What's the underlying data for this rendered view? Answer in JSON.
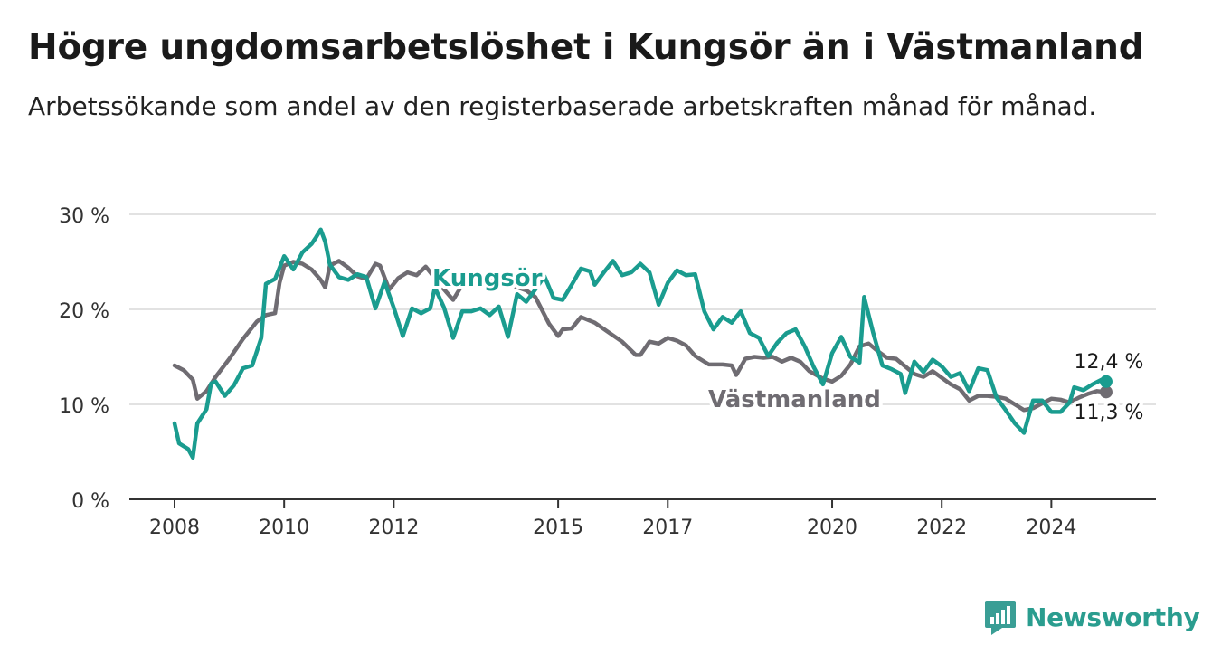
{
  "header": {
    "title": "Högre ungdomsarbetslöshet i Kungsör än i Västmanland",
    "subtitle": "Arbetssökande som andel av den registerbaserade arbetskraften månad för månad."
  },
  "brand": {
    "name": "Newsworthy",
    "icon": "newsworthy-logo-icon",
    "color": "#3a9e95"
  },
  "chart_data": {
    "type": "line",
    "ylim": [
      0,
      30
    ],
    "y_ticks": [
      0,
      10,
      20,
      30
    ],
    "y_tick_labels": [
      "0 %",
      "10 %",
      "20 %",
      "30 %"
    ],
    "x_range": [
      "2008-01",
      "2025-02"
    ],
    "x_ticks": [
      "2008-01",
      "2010-01",
      "2012-01",
      "2015-01",
      "2017-01",
      "2020-01",
      "2022-01",
      "2024-01"
    ],
    "x_tick_labels": [
      "2008",
      "2010",
      "2012",
      "2015",
      "2017",
      "2020",
      "2022",
      "2024"
    ],
    "grid": true,
    "series": [
      {
        "name": "Västmanland",
        "color": "#6f6c72",
        "end_label": "11,3 %",
        "points": [
          [
            "2008-01",
            14.1
          ],
          [
            "2008-03",
            13.6
          ],
          [
            "2008-05",
            12.6
          ],
          [
            "2008-06",
            10.6
          ],
          [
            "2008-08",
            11.4
          ],
          [
            "2008-10",
            12.9
          ],
          [
            "2009-01",
            14.8
          ],
          [
            "2009-04",
            16.9
          ],
          [
            "2009-07",
            18.7
          ],
          [
            "2009-09",
            19.4
          ],
          [
            "2009-11",
            19.6
          ],
          [
            "2009-12",
            22.8
          ],
          [
            "2010-01",
            24.6
          ],
          [
            "2010-03",
            25.0
          ],
          [
            "2010-05",
            24.8
          ],
          [
            "2010-07",
            24.2
          ],
          [
            "2010-09",
            23.1
          ],
          [
            "2010-10",
            22.3
          ],
          [
            "2010-11",
            24.6
          ],
          [
            "2011-01",
            25.1
          ],
          [
            "2011-03",
            24.4
          ],
          [
            "2011-05",
            23.5
          ],
          [
            "2011-07",
            23.2
          ],
          [
            "2011-09",
            24.8
          ],
          [
            "2011-10",
            24.6
          ],
          [
            "2011-12",
            22.1
          ],
          [
            "2012-02",
            23.3
          ],
          [
            "2012-04",
            23.9
          ],
          [
            "2012-06",
            23.6
          ],
          [
            "2012-08",
            24.5
          ],
          [
            "2012-10",
            23.3
          ],
          [
            "2012-12",
            22.1
          ],
          [
            "2013-02",
            21.0
          ],
          [
            "2013-04",
            22.6
          ],
          [
            "2013-06",
            23.2
          ],
          [
            "2013-07",
            23.9
          ],
          [
            "2014-06",
            22.0
          ],
          [
            "2014-08",
            21.3
          ],
          [
            "2014-11",
            18.5
          ],
          [
            "2015-01",
            17.2
          ],
          [
            "2015-02",
            17.9
          ],
          [
            "2015-04",
            18.0
          ],
          [
            "2015-06",
            19.2
          ],
          [
            "2015-09",
            18.6
          ],
          [
            "2015-12",
            17.6
          ],
          [
            "2016-03",
            16.6
          ],
          [
            "2016-06",
            15.2
          ],
          [
            "2016-07",
            15.2
          ],
          [
            "2016-09",
            16.6
          ],
          [
            "2016-11",
            16.4
          ],
          [
            "2017-01",
            17.0
          ],
          [
            "2017-03",
            16.7
          ],
          [
            "2017-05",
            16.2
          ],
          [
            "2017-07",
            15.1
          ],
          [
            "2017-10",
            14.2
          ],
          [
            "2018-01",
            14.2
          ],
          [
            "2018-03",
            14.1
          ],
          [
            "2018-04",
            13.1
          ],
          [
            "2018-06",
            14.8
          ],
          [
            "2018-08",
            15.0
          ],
          [
            "2018-10",
            14.9
          ],
          [
            "2018-12",
            15.0
          ],
          [
            "2019-02",
            14.5
          ],
          [
            "2019-04",
            14.9
          ],
          [
            "2019-06",
            14.5
          ],
          [
            "2019-08",
            13.5
          ],
          [
            "2019-11",
            12.7
          ],
          [
            "2020-01",
            12.4
          ],
          [
            "2020-03",
            13.0
          ],
          [
            "2020-05",
            14.2
          ],
          [
            "2020-07",
            16.1
          ],
          [
            "2020-09",
            16.4
          ],
          [
            "2020-11",
            15.6
          ],
          [
            "2021-01",
            14.9
          ],
          [
            "2021-03",
            14.8
          ],
          [
            "2021-05",
            14.0
          ],
          [
            "2021-07",
            13.2
          ],
          [
            "2021-09",
            12.9
          ],
          [
            "2021-11",
            13.5
          ],
          [
            "2022-01",
            12.8
          ],
          [
            "2022-03",
            12.1
          ],
          [
            "2022-05",
            11.6
          ],
          [
            "2022-07",
            10.4
          ],
          [
            "2022-09",
            10.9
          ],
          [
            "2022-11",
            10.9
          ],
          [
            "2023-01",
            10.8
          ],
          [
            "2023-03",
            10.6
          ],
          [
            "2023-05",
            10.0
          ],
          [
            "2023-07",
            9.4
          ],
          [
            "2023-09",
            9.6
          ],
          [
            "2023-11",
            10.1
          ],
          [
            "2024-01",
            10.6
          ],
          [
            "2024-03",
            10.5
          ],
          [
            "2024-05",
            10.2
          ],
          [
            "2024-07",
            10.7
          ],
          [
            "2024-09",
            11.1
          ],
          [
            "2024-11",
            11.4
          ],
          [
            "2025-01",
            11.3
          ]
        ]
      },
      {
        "name": "Kungsör",
        "color": "#1a9c8f",
        "end_label": "12,4 %",
        "points": [
          [
            "2008-01",
            8.0
          ],
          [
            "2008-02",
            5.9
          ],
          [
            "2008-04",
            5.3
          ],
          [
            "2008-05",
            4.4
          ],
          [
            "2008-06",
            8.0
          ],
          [
            "2008-08",
            9.5
          ],
          [
            "2008-09",
            12.2
          ],
          [
            "2008-10",
            12.4
          ],
          [
            "2008-12",
            10.9
          ],
          [
            "2009-02",
            12.0
          ],
          [
            "2009-04",
            13.8
          ],
          [
            "2009-06",
            14.1
          ],
          [
            "2009-08",
            17.0
          ],
          [
            "2009-09",
            22.7
          ],
          [
            "2009-11",
            23.2
          ],
          [
            "2010-01",
            25.6
          ],
          [
            "2010-03",
            24.2
          ],
          [
            "2010-05",
            26.0
          ],
          [
            "2010-07",
            26.9
          ],
          [
            "2010-08",
            27.6
          ],
          [
            "2010-09",
            28.4
          ],
          [
            "2010-10",
            27.1
          ],
          [
            "2010-11",
            24.7
          ],
          [
            "2011-01",
            23.4
          ],
          [
            "2011-03",
            23.1
          ],
          [
            "2011-05",
            23.7
          ],
          [
            "2011-07",
            23.4
          ],
          [
            "2011-09",
            20.1
          ],
          [
            "2011-11",
            22.9
          ],
          [
            "2012-01",
            20.2
          ],
          [
            "2012-03",
            17.2
          ],
          [
            "2012-05",
            20.1
          ],
          [
            "2012-07",
            19.6
          ],
          [
            "2012-09",
            20.1
          ],
          [
            "2012-10",
            22.3
          ],
          [
            "2012-12",
            20.2
          ],
          [
            "2013-02",
            17.0
          ],
          [
            "2013-04",
            19.8
          ],
          [
            "2013-06",
            19.8
          ],
          [
            "2013-08",
            20.1
          ],
          [
            "2013-10",
            19.4
          ],
          [
            "2013-12",
            20.3
          ],
          [
            "2014-02",
            17.1
          ],
          [
            "2014-04",
            21.6
          ],
          [
            "2014-06",
            20.8
          ],
          [
            "2014-08",
            22.1
          ],
          [
            "2014-10",
            23.5
          ],
          [
            "2014-12",
            21.2
          ],
          [
            "2015-02",
            21.0
          ],
          [
            "2015-04",
            22.6
          ],
          [
            "2015-06",
            24.3
          ],
          [
            "2015-08",
            24.0
          ],
          [
            "2015-09",
            22.6
          ],
          [
            "2015-11",
            23.9
          ],
          [
            "2016-01",
            25.1
          ],
          [
            "2016-03",
            23.6
          ],
          [
            "2016-05",
            23.9
          ],
          [
            "2016-07",
            24.8
          ],
          [
            "2016-09",
            23.9
          ],
          [
            "2016-11",
            20.5
          ],
          [
            "2017-01",
            22.8
          ],
          [
            "2017-03",
            24.1
          ],
          [
            "2017-05",
            23.6
          ],
          [
            "2017-07",
            23.7
          ],
          [
            "2017-09",
            19.8
          ],
          [
            "2017-11",
            17.9
          ],
          [
            "2018-01",
            19.2
          ],
          [
            "2018-03",
            18.6
          ],
          [
            "2018-05",
            19.8
          ],
          [
            "2018-07",
            17.5
          ],
          [
            "2018-09",
            17.0
          ],
          [
            "2018-11",
            15.1
          ],
          [
            "2019-01",
            16.5
          ],
          [
            "2019-03",
            17.5
          ],
          [
            "2019-05",
            17.9
          ],
          [
            "2019-07",
            16.1
          ],
          [
            "2019-09",
            13.9
          ],
          [
            "2019-11",
            12.1
          ],
          [
            "2020-01",
            15.4
          ],
          [
            "2020-03",
            17.1
          ],
          [
            "2020-05",
            15.0
          ],
          [
            "2020-07",
            14.4
          ],
          [
            "2020-08",
            21.3
          ],
          [
            "2020-10",
            17.5
          ],
          [
            "2020-12",
            14.1
          ],
          [
            "2021-02",
            13.7
          ],
          [
            "2021-04",
            13.2
          ],
          [
            "2021-05",
            11.2
          ],
          [
            "2021-07",
            14.5
          ],
          [
            "2021-09",
            13.4
          ],
          [
            "2021-11",
            14.7
          ],
          [
            "2022-01",
            14.0
          ],
          [
            "2022-03",
            12.9
          ],
          [
            "2022-05",
            13.3
          ],
          [
            "2022-07",
            11.4
          ],
          [
            "2022-09",
            13.8
          ],
          [
            "2022-11",
            13.6
          ],
          [
            "2023-01",
            10.7
          ],
          [
            "2023-03",
            9.4
          ],
          [
            "2023-05",
            8.0
          ],
          [
            "2023-07",
            7.0
          ],
          [
            "2023-09",
            10.4
          ],
          [
            "2023-11",
            10.4
          ],
          [
            "2024-01",
            9.2
          ],
          [
            "2024-03",
            9.2
          ],
          [
            "2024-05",
            10.2
          ],
          [
            "2024-06",
            11.8
          ],
          [
            "2024-08",
            11.5
          ],
          [
            "2024-10",
            12.1
          ],
          [
            "2024-12",
            12.6
          ],
          [
            "2025-01",
            12.4
          ]
        ]
      }
    ]
  }
}
